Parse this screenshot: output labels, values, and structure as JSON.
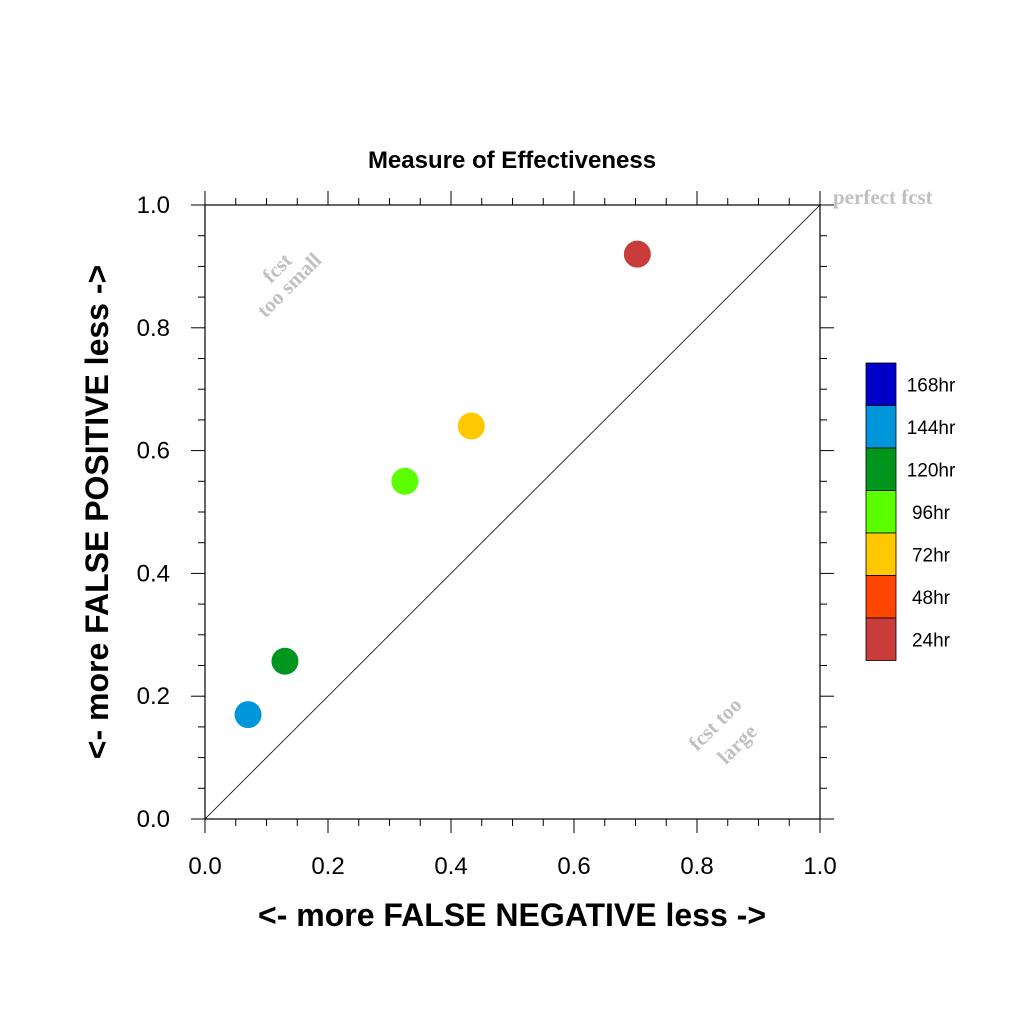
{
  "chart_data": {
    "type": "scatter",
    "title": "Measure of Effectiveness",
    "xlabel": "<- more   FALSE NEGATIVE   less ->",
    "ylabel": "<- more   FALSE POSITIVE   less ->",
    "xlim": [
      0,
      1
    ],
    "ylim": [
      0,
      1
    ],
    "x_ticks": [
      "0.0",
      "0.2",
      "0.4",
      "0.6",
      "0.8",
      "1.0"
    ],
    "y_ticks": [
      "0.0",
      "0.2",
      "0.4",
      "0.6",
      "0.8",
      "1.0"
    ],
    "grid": false,
    "diagonal_reference_line": true,
    "legend_position": "right",
    "annotations": {
      "perfect": "perfect fcst",
      "too_small_line1": "fcst",
      "too_small_line2": "too small",
      "too_large_line1": "fcst too",
      "too_large_line2": "large"
    },
    "legend": [
      {
        "name": "168hr",
        "color": "#0000c8"
      },
      {
        "name": "144hr",
        "color": "#0096dc"
      },
      {
        "name": "120hr",
        "color": "#00961e"
      },
      {
        "name": "96hr",
        "color": "#5aff00"
      },
      {
        "name": "72hr",
        "color": "#ffc800"
      },
      {
        "name": "48hr",
        "color": "#ff4600"
      },
      {
        "name": "24hr",
        "color": "#c83c3c"
      }
    ],
    "points": [
      {
        "series": "144hr",
        "x": 0.07,
        "y": 0.17,
        "color": "#0096dc"
      },
      {
        "series": "120hr",
        "x": 0.13,
        "y": 0.257,
        "color": "#00961e"
      },
      {
        "series": "96hr",
        "x": 0.325,
        "y": 0.55,
        "color": "#5aff00"
      },
      {
        "series": "72hr",
        "x": 0.433,
        "y": 0.64,
        "color": "#ffc800"
      },
      {
        "series": "24hr",
        "x": 0.703,
        "y": 0.92,
        "color": "#c83c3c"
      }
    ]
  }
}
